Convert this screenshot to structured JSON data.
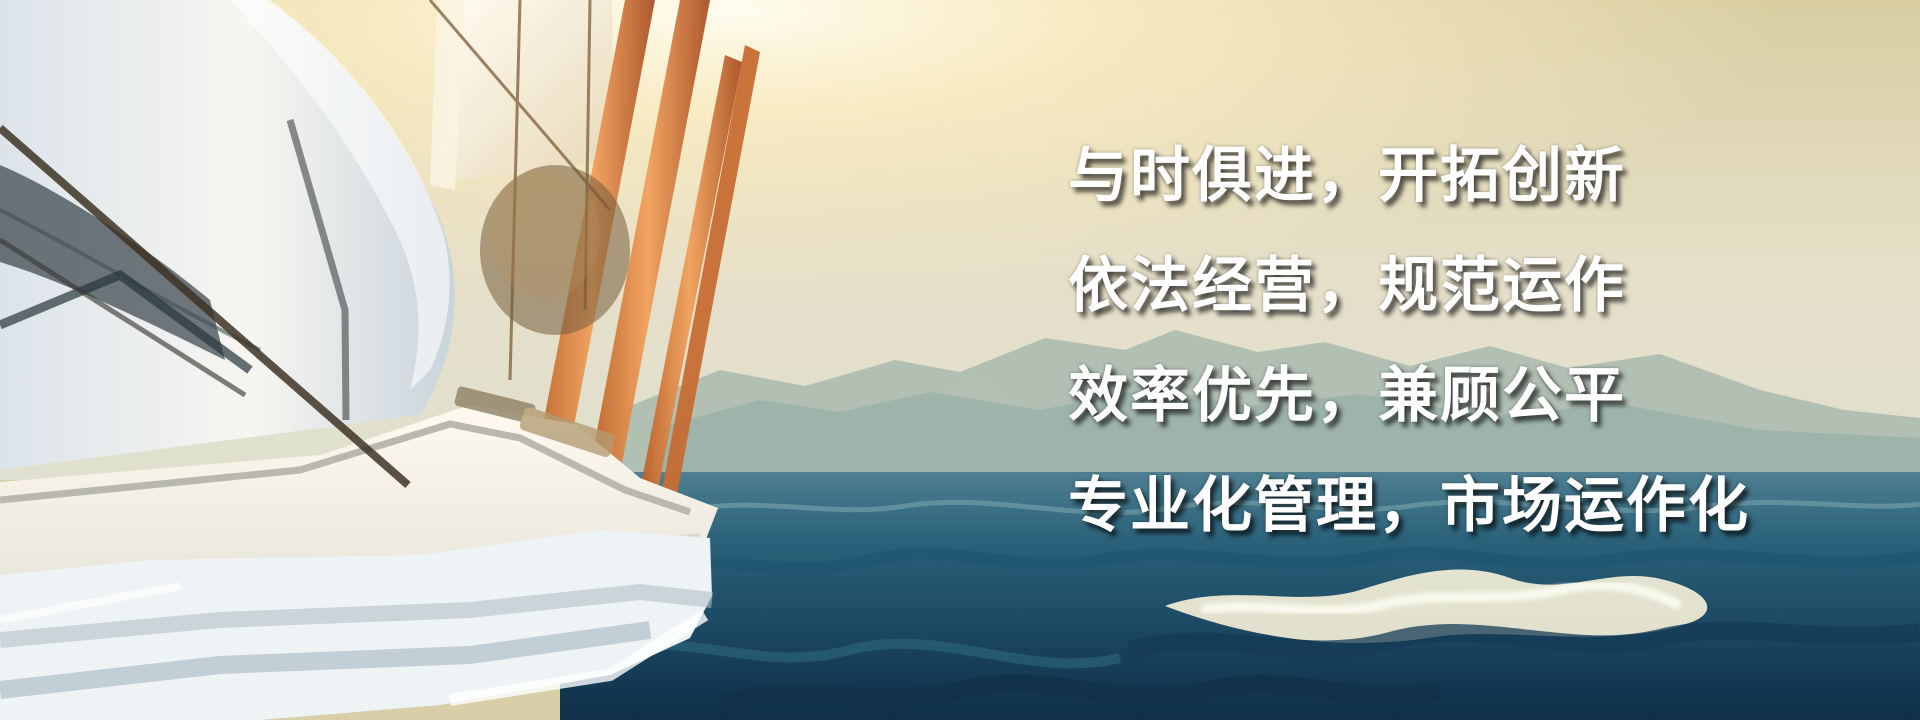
{
  "banner": {
    "slogans": [
      "与时俱进，开拓创新",
      "依法经营，规范运作",
      "效率优先，兼顾公平",
      "专业化管理，市场运作化"
    ],
    "colors": {
      "sky_top": "#d9cfa3",
      "sky_bottom": "#e7e2cf",
      "sun_glow": "#fff7d8",
      "mountains": "#9fb5ad",
      "sea_dark": "#173e59",
      "sea_mid": "#2a647d",
      "wave_foam": "#f6f1df",
      "boat_hull": "#f1f2ef",
      "mast_orange": "#d77a3a",
      "text": "#ffffff"
    }
  }
}
